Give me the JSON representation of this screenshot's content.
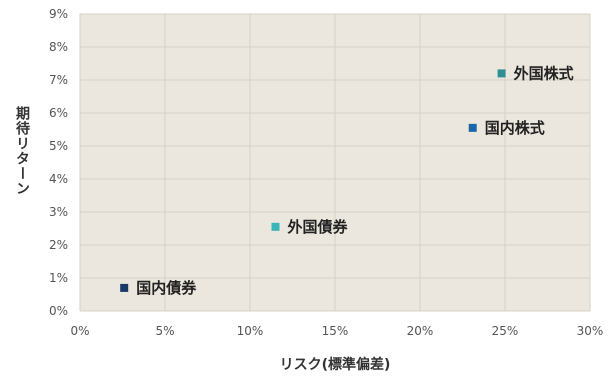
{
  "chart_data": {
    "type": "scatter",
    "title": "",
    "xlabel": "リスク(標準偏差)",
    "ylabel": "期待リターン",
    "xlim": [
      0,
      30
    ],
    "ylim": [
      0,
      9
    ],
    "x_ticks": [
      "0%",
      "5%",
      "10%",
      "15%",
      "20%",
      "25%",
      "30%"
    ],
    "y_ticks": [
      "0%",
      "1%",
      "2%",
      "3%",
      "4%",
      "5%",
      "6%",
      "7%",
      "8%",
      "9%"
    ],
    "grid": true,
    "background": "#ebe7de",
    "points": [
      {
        "label": "国内債券",
        "x": 2.6,
        "y": 0.7,
        "color": "#173a66"
      },
      {
        "label": "外国債券",
        "x": 11.5,
        "y": 2.55,
        "color": "#3bb5b5"
      },
      {
        "label": "国内株式",
        "x": 23.1,
        "y": 5.55,
        "color": "#1a66a8"
      },
      {
        "label": "外国株式",
        "x": 24.8,
        "y": 7.2,
        "color": "#2f8f95"
      }
    ]
  }
}
